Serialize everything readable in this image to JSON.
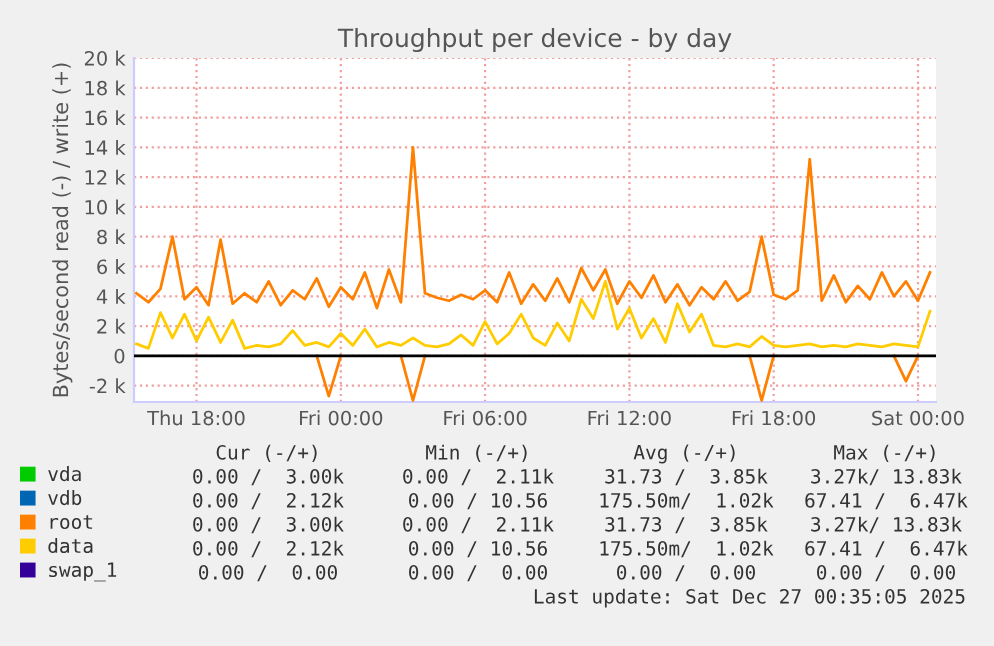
{
  "chart_data": {
    "type": "line",
    "title": "Throughput per device - by day",
    "ylabel": "Bytes/second read (-) / write (+)",
    "xlim": [
      "2025-12-25T15:24",
      "2025-12-27T00:45"
    ],
    "xticks": [
      {
        "value": "2025-12-25T18:00",
        "label": "Thu 18:00"
      },
      {
        "value": "2025-12-26T00:00",
        "label": "Fri 00:00"
      },
      {
        "value": "2025-12-26T06:00",
        "label": "Fri 06:00"
      },
      {
        "value": "2025-12-26T12:00",
        "label": "Fri 12:00"
      },
      {
        "value": "2025-12-26T18:00",
        "label": "Fri 18:00"
      },
      {
        "value": "2025-12-27T00:00",
        "label": "Sat 00:00"
      }
    ],
    "ylim": [
      -3100,
      20000
    ],
    "yticks": [
      {
        "value": -2000,
        "label": "-2 k"
      },
      0,
      {
        "value": 2000,
        "label": "2 k"
      },
      {
        "value": 4000,
        "label": "4 k"
      },
      {
        "value": 6000,
        "label": "6 k"
      },
      {
        "value": 8000,
        "label": "8 k"
      },
      {
        "value": 10000,
        "label": "10 k"
      },
      {
        "value": 12000,
        "label": "12 k"
      },
      {
        "value": 14000,
        "label": "14 k"
      },
      {
        "value": 16000,
        "label": "16 k"
      },
      {
        "value": 18000,
        "label": "18 k"
      },
      {
        "value": 20000,
        "label": "20 k"
      }
    ],
    "grid": true,
    "legend": "bottom",
    "ref_lines": [
      {
        "axis": "y",
        "value": 0,
        "color": "#000000"
      }
    ],
    "x": [
      "2025-12-25T15:30",
      "2025-12-25T16:00",
      "2025-12-25T16:30",
      "2025-12-25T17:00",
      "2025-12-25T17:30",
      "2025-12-25T18:00",
      "2025-12-25T18:30",
      "2025-12-25T19:00",
      "2025-12-25T19:30",
      "2025-12-25T20:00",
      "2025-12-25T20:30",
      "2025-12-25T21:00",
      "2025-12-25T21:30",
      "2025-12-25T22:00",
      "2025-12-25T22:30",
      "2025-12-25T23:00",
      "2025-12-25T23:30",
      "2025-12-26T00:00",
      "2025-12-26T00:30",
      "2025-12-26T01:00",
      "2025-12-26T01:30",
      "2025-12-26T02:00",
      "2025-12-26T02:30",
      "2025-12-26T03:00",
      "2025-12-26T03:30",
      "2025-12-26T04:00",
      "2025-12-26T04:30",
      "2025-12-26T05:00",
      "2025-12-26T05:30",
      "2025-12-26T06:00",
      "2025-12-26T06:30",
      "2025-12-26T07:00",
      "2025-12-26T07:30",
      "2025-12-26T08:00",
      "2025-12-26T08:30",
      "2025-12-26T09:00",
      "2025-12-26T09:30",
      "2025-12-26T10:00",
      "2025-12-26T10:30",
      "2025-12-26T11:00",
      "2025-12-26T11:30",
      "2025-12-26T12:00",
      "2025-12-26T12:30",
      "2025-12-26T13:00",
      "2025-12-26T13:30",
      "2025-12-26T14:00",
      "2025-12-26T14:30",
      "2025-12-26T15:00",
      "2025-12-26T15:30",
      "2025-12-26T16:00",
      "2025-12-26T16:30",
      "2025-12-26T17:00",
      "2025-12-26T17:30",
      "2025-12-26T18:00",
      "2025-12-26T18:30",
      "2025-12-26T19:00",
      "2025-12-26T19:30",
      "2025-12-26T20:00",
      "2025-12-26T20:30",
      "2025-12-26T21:00",
      "2025-12-26T21:30",
      "2025-12-26T22:00",
      "2025-12-26T22:30",
      "2025-12-26T23:00",
      "2025-12-26T23:30",
      "2025-12-27T00:00",
      "2025-12-27T00:30"
    ],
    "series": [
      {
        "name": "vda",
        "color": "#00cc00",
        "values": [
          null,
          null,
          null,
          null,
          null,
          null,
          null,
          null,
          null,
          null,
          null,
          null,
          null,
          null,
          null,
          null,
          null,
          null,
          null,
          null,
          null,
          null,
          null,
          null,
          null,
          null,
          null,
          null,
          null,
          null,
          null,
          null,
          null,
          null,
          null,
          null,
          null,
          null,
          null,
          null,
          null,
          null,
          null,
          null,
          null,
          null,
          null,
          null,
          null,
          null,
          null,
          null,
          null,
          null,
          null,
          null,
          null,
          null,
          null,
          null,
          null,
          null,
          null,
          null,
          null,
          null,
          null
        ]
      },
      {
        "name": "vdb",
        "color": "#0066b3",
        "values": [
          null,
          null,
          null,
          null,
          null,
          null,
          null,
          null,
          null,
          null,
          null,
          null,
          null,
          null,
          null,
          null,
          null,
          null,
          null,
          null,
          null,
          null,
          null,
          null,
          null,
          null,
          null,
          null,
          null,
          null,
          null,
          null,
          null,
          null,
          null,
          null,
          null,
          null,
          null,
          null,
          null,
          null,
          null,
          null,
          null,
          null,
          null,
          null,
          null,
          null,
          null,
          null,
          null,
          null,
          null,
          null,
          null,
          null,
          null,
          null,
          null,
          null,
          null,
          null,
          null,
          null,
          null
        ]
      },
      {
        "name": "root",
        "color": "#ff8000",
        "values": [
          4200,
          3600,
          4500,
          8000,
          3800,
          4600,
          3400,
          7800,
          3500,
          4200,
          3600,
          5000,
          3400,
          4400,
          3800,
          5200,
          3300,
          4600,
          3800,
          5600,
          3200,
          5800,
          3600,
          14000,
          4200,
          3900,
          3700,
          4100,
          3800,
          4400,
          3600,
          5600,
          3500,
          4800,
          3700,
          5200,
          3600,
          5900,
          4400,
          5800,
          3500,
          5000,
          3900,
          5400,
          3600,
          4800,
          3400,
          4600,
          3800,
          5000,
          3700,
          4300,
          8000,
          4100,
          3800,
          4400,
          13200,
          3700,
          5400,
          3600,
          4700,
          3800,
          5600,
          4000,
          5000,
          3700,
          5600
        ]
      },
      {
        "color": "#ff8000",
        "values": [
          null,
          null,
          null,
          null,
          null,
          null,
          null,
          null,
          null,
          null,
          null,
          null,
          null,
          null,
          null,
          0,
          -2700,
          0,
          null,
          null,
          null,
          null,
          0,
          -3000,
          0,
          null,
          null,
          null,
          null,
          null,
          null,
          null,
          null,
          null,
          null,
          null,
          null,
          null,
          null,
          null,
          null,
          null,
          null,
          null,
          null,
          null,
          null,
          null,
          null,
          null,
          null,
          0,
          -3000,
          0,
          null,
          null,
          null,
          null,
          null,
          null,
          null,
          null,
          null,
          0,
          -1700,
          0,
          null
        ]
      },
      {
        "name": "data",
        "color": "#ffcc00",
        "values": [
          800,
          500,
          2900,
          1200,
          2800,
          1000,
          2600,
          900,
          2400,
          500,
          700,
          600,
          800,
          1700,
          700,
          900,
          600,
          1500,
          700,
          1800,
          600,
          900,
          700,
          1200,
          700,
          600,
          800,
          1400,
          700,
          2300,
          800,
          1500,
          2800,
          1200,
          700,
          2200,
          1000,
          3800,
          2500,
          5000,
          1800,
          3200,
          1200,
          2500,
          900,
          3500,
          1600,
          2800,
          700,
          600,
          800,
          600,
          1300,
          700,
          600,
          700,
          800,
          600,
          700,
          600,
          800,
          700,
          600,
          800,
          700,
          600,
          3000
        ]
      },
      {
        "name": "swap_1",
        "color": "#330099",
        "values": [
          null,
          null,
          null,
          null,
          null,
          null,
          null,
          null,
          null,
          null,
          null,
          null,
          null,
          null,
          null,
          null,
          null,
          null,
          null,
          null,
          null,
          null,
          null,
          null,
          null,
          null,
          null,
          null,
          null,
          null,
          null,
          null,
          null,
          null,
          null,
          null,
          null,
          null,
          null,
          null,
          null,
          null,
          null,
          null,
          null,
          null,
          null,
          null,
          null,
          null,
          null,
          null,
          null,
          null,
          null,
          null,
          null,
          null,
          null,
          null,
          null,
          null,
          null,
          null,
          null,
          null,
          null
        ]
      }
    ],
    "annotations": [
      "Cur (-/+)",
      "Min (-/+)",
      "Avg (-/+)",
      "Max (-/+)",
      "0.00 /  3.00k",
      "0.00 /  2.11k",
      "31.73 /  3.85k",
      "3.27k/ 13.83k",
      "0.00 /  2.12k",
      "0.00 / 10.56",
      "175.50m/  1.02k",
      "67.41 /  6.47k",
      "0.00 /  3.00k",
      "0.00 /  2.11k",
      "31.73 /  3.85k",
      "3.27k/ 13.83k",
      "0.00 /  2.12k",
      "0.00 / 10.56",
      "175.50m/  1.02k",
      "67.41 /  6.47k",
      "0.00 /  0.00",
      "0.00 /  0.00",
      "0.00 /  0.00",
      "0.00 /  0.00",
      "Last update: Sat Dec 27 00:35:05 2025"
    ]
  }
}
